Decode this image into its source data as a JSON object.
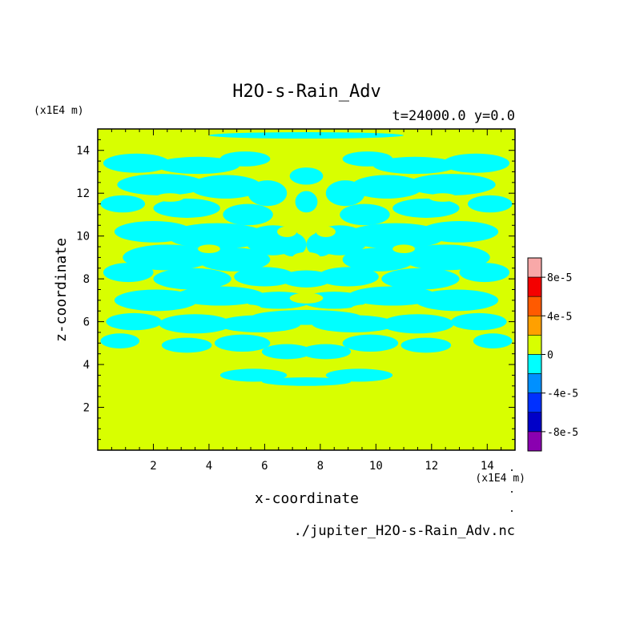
{
  "chart_data": {
    "type": "heatmap",
    "title": "H2O-s-Rain_Adv",
    "subtitle": "t=24000.0 y=0.0",
    "xlabel": "x-coordinate",
    "ylabel": "z-coordinate",
    "x_unit": "(x1E4 m)",
    "y_unit": "(x1E4 m)",
    "file_label": "./jupiter_H2O-s-Rain_Adv.nc",
    "xlim": [
      0,
      15
    ],
    "ylim": [
      0,
      15
    ],
    "x_ticks": [
      "2",
      "4",
      "6",
      "8",
      "10",
      "12",
      "14"
    ],
    "y_ticks": [
      "2",
      "4",
      "6",
      "8",
      "10",
      "12",
      "14"
    ],
    "colorbar": {
      "levels": [
        {
          "color": "#f8a8a8"
        },
        {
          "color": "#f40000"
        },
        {
          "color": "#ff5a00"
        },
        {
          "color": "#ffa000"
        },
        {
          "color": "#d8ff00"
        },
        {
          "color": "#00ffff"
        },
        {
          "color": "#0090ff"
        },
        {
          "color": "#0030ff"
        },
        {
          "color": "#0000c8"
        },
        {
          "color": "#8a00b0"
        }
      ],
      "tick_labels": [
        "8e-5",
        "4e-5",
        "0",
        "-4e-5",
        "-8e-5"
      ]
    },
    "background_value": "0",
    "background_color": "#d8ff00",
    "anomaly_color": "#00ffff",
    "anomaly_value": "negative (0 to -4e-5)",
    "grid": false,
    "legend_placement": "right"
  }
}
